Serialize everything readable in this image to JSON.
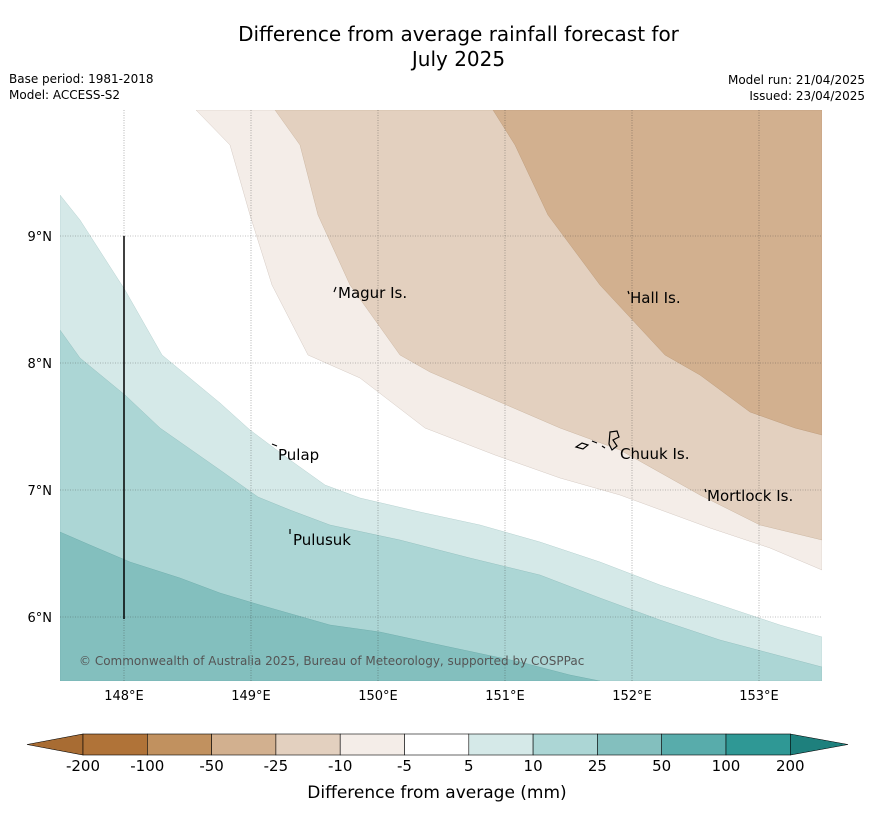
{
  "title_line1": "Difference from average rainfall forecast for",
  "title_line2": "July 2025",
  "meta_left": {
    "base_period": "Base period: 1981-2018",
    "model": "Model: ACCESS-S2"
  },
  "meta_right": {
    "model_run": "Model run: 21/04/2025",
    "issued": "Issued: 23/04/2025"
  },
  "map": {
    "lon_ticks": [
      "148°E",
      "149°E",
      "150°E",
      "151°E",
      "152°E",
      "153°E"
    ],
    "lat_ticks": [
      "9°N",
      "8°N",
      "7°N",
      "6°N"
    ],
    "places": [
      {
        "name": "Magur Is."
      },
      {
        "name": "Hall Is."
      },
      {
        "name": "Pulap"
      },
      {
        "name": "Chuuk Is."
      },
      {
        "name": "Mortlock Is."
      },
      {
        "name": "Pulusuk"
      }
    ],
    "copyright": "© Commonwealth of Australia 2025, Bureau of Meteorology, supported by COSPPac"
  },
  "legend": {
    "title": "Difference from average (mm)",
    "ticks": [
      "-200",
      "-100",
      "-50",
      "-25",
      "-10",
      "-5",
      "5",
      "10",
      "25",
      "50",
      "100",
      "200"
    ],
    "colors": [
      "#a86c33",
      "#b07338",
      "#c1915f",
      "#d2b08f",
      "#e3d0bf",
      "#f4ede8",
      "#ffffff",
      "#d5e9e8",
      "#acd6d5",
      "#83bfbe",
      "#58acab",
      "#2f9895",
      "#1e807d"
    ]
  }
}
